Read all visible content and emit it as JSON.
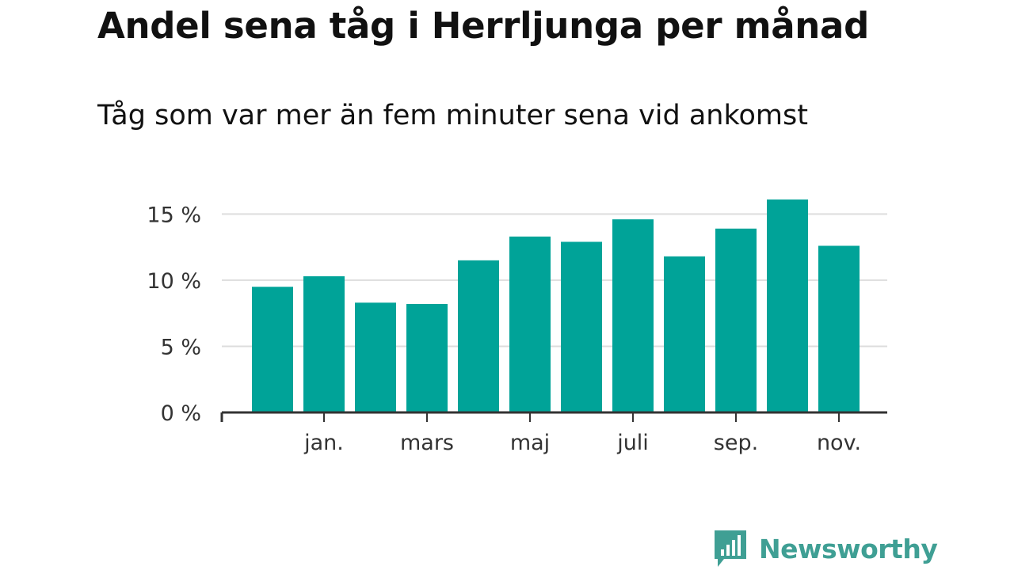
{
  "title": "Andel sena tåg i Herrljunga per månad",
  "subtitle": "Tåg som var mer än fem minuter sena vid ankomst",
  "brand": {
    "name": "Newsworthy",
    "color": "#3f9f94",
    "icon": "newsworthy-logo-icon"
  },
  "colors": {
    "bar": "#00a398",
    "grid": "#dddddd",
    "axis": "#333333"
  },
  "chart_data": {
    "type": "bar",
    "title": "Andel sena tåg i Herrljunga per månad",
    "subtitle": "Tåg som var mer än fem minuter sena vid ankomst",
    "xlabel": "",
    "ylabel": "",
    "categories": [
      "",
      "jan.",
      "",
      "mars",
      "",
      "maj",
      "",
      "juli",
      "",
      "sep.",
      "",
      "nov."
    ],
    "values": [
      9.5,
      10.3,
      8.3,
      8.2,
      11.5,
      13.3,
      12.9,
      14.6,
      11.8,
      13.9,
      16.1,
      12.6
    ],
    "ylim": [
      0,
      16.1
    ],
    "yticks": [
      {
        "value": 0,
        "label": "0 %"
      },
      {
        "value": 5,
        "label": "5 %"
      },
      {
        "value": 10,
        "label": "10 %"
      },
      {
        "value": 15,
        "label": "15 %"
      }
    ],
    "grid": true,
    "legend": "none"
  }
}
